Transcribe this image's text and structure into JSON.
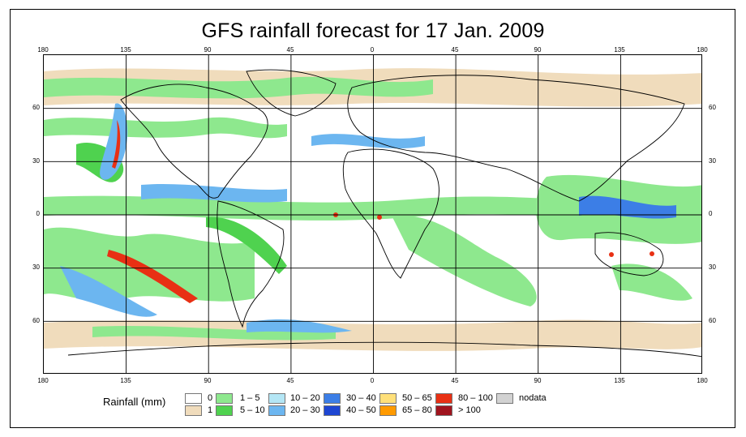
{
  "title": "GFS rainfall forecast for 17 Jan. 2009",
  "axes": {
    "lon_ticks": [
      "180",
      "135",
      "90",
      "45",
      "0",
      "45",
      "90",
      "135",
      "180"
    ],
    "lat_ticks": [
      "60",
      "30",
      "0",
      "30",
      "60"
    ]
  },
  "legend": {
    "title": "Rainfall (mm)",
    "items": [
      {
        "label": "0",
        "color": "#ffffff"
      },
      {
        "label": "1",
        "color": "#f0dcbc"
      },
      {
        "label": "1 – 5",
        "color": "#8ee88e"
      },
      {
        "label": "5 – 10",
        "color": "#4fd24f"
      },
      {
        "label": "10 – 20",
        "color": "#b4e6f5"
      },
      {
        "label": "20 – 30",
        "color": "#6cb6f0"
      },
      {
        "label": "30 – 40",
        "color": "#3c7ee6"
      },
      {
        "label": "40 – 50",
        "color": "#1e46d2"
      },
      {
        "label": "50 – 65",
        "color": "#ffe07a"
      },
      {
        "label": "65 – 80",
        "color": "#ff9a00"
      },
      {
        "label": "80 – 100",
        "color": "#e83014"
      },
      {
        "label": "> 100",
        "color": "#a0141e"
      },
      {
        "label": "nodata",
        "color": "#d2d2d2"
      }
    ]
  }
}
